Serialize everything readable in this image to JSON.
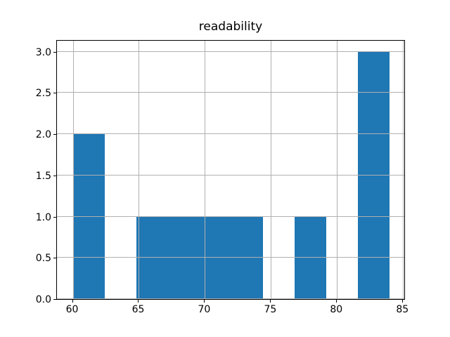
{
  "figure": {
    "background": "#ffffff"
  },
  "chart_data": {
    "type": "bar",
    "subtype": "histogram",
    "title": "readability",
    "xlabel": "",
    "ylabel": "",
    "bin_edges": [
      60,
      62.4,
      64.8,
      67.2,
      69.6,
      72,
      74.4,
      76.8,
      79.2,
      81.6,
      84
    ],
    "counts": [
      2,
      0,
      1,
      1,
      1,
      1,
      0,
      1,
      0,
      3
    ],
    "xlim": [
      58.8,
      85.2
    ],
    "ylim": [
      0,
      3.15
    ],
    "xticks": [
      {
        "value": 60,
        "label": "60"
      },
      {
        "value": 65,
        "label": "65"
      },
      {
        "value": 70,
        "label": "70"
      },
      {
        "value": 75,
        "label": "75"
      },
      {
        "value": 80,
        "label": "80"
      },
      {
        "value": 85,
        "label": "85"
      }
    ],
    "yticks": [
      {
        "value": 0.0,
        "label": "0.0"
      },
      {
        "value": 0.5,
        "label": "0.5"
      },
      {
        "value": 1.0,
        "label": "1.0"
      },
      {
        "value": 1.5,
        "label": "1.5"
      },
      {
        "value": 2.0,
        "label": "2.0"
      },
      {
        "value": 2.5,
        "label": "2.5"
      },
      {
        "value": 3.0,
        "label": "3.0"
      }
    ],
    "bar_color": "#1f77b4",
    "grid": true,
    "grid_color": "#b0b0b0",
    "legend": null
  }
}
